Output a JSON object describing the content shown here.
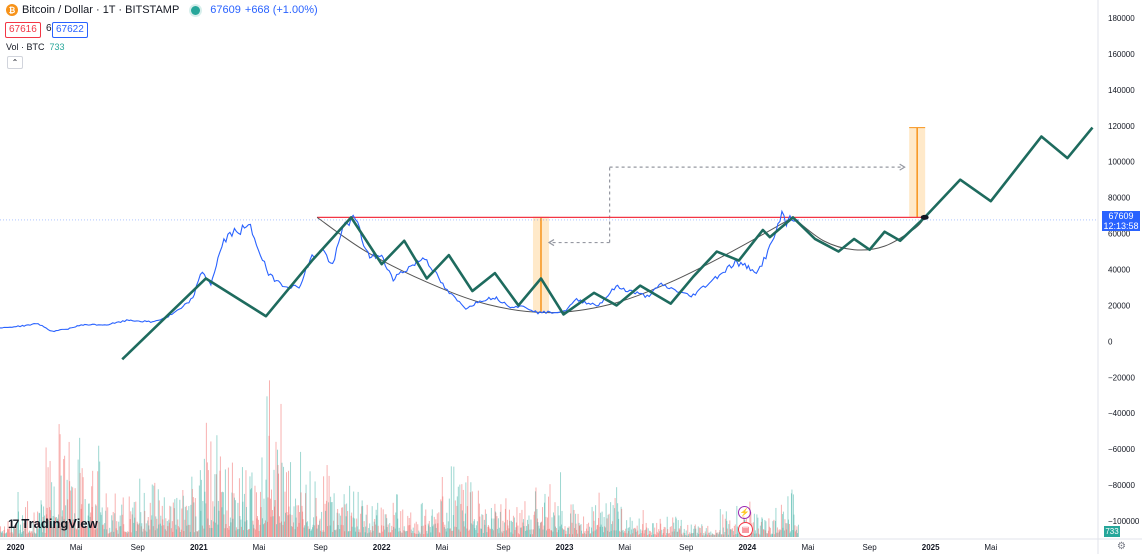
{
  "header": {
    "coin_symbol": "₿",
    "title": "Bitcoin / Dollar · 1T · BITSTAMP",
    "last": "67609",
    "change": "+668 (+1.00%)",
    "bid": "67616",
    "spread": "6",
    "ask": "67622"
  },
  "volume_label": {
    "name": "Vol · BTC",
    "value": "733"
  },
  "collapse_icon": "chevron-up-icon",
  "collapse_glyph": "⌃",
  "logo": {
    "mark": "17",
    "text": "TradingView"
  },
  "price_tag": {
    "price": "67609",
    "time": "12:13:58"
  },
  "volume_tag": "733",
  "colors": {
    "price": "#2962ff",
    "pattern": "#1e6b5e",
    "curve": "#555555",
    "resistance": "#f23645",
    "target": "#f7931a",
    "volume_up": "#26a69a",
    "volume_down": "#ef5350"
  },
  "chart_data": {
    "type": "line",
    "ylim": [
      -110000,
      190000
    ],
    "xlim": [
      "2019-12-01",
      "2025-12-01"
    ],
    "yticks": [
      180000,
      160000,
      140000,
      120000,
      100000,
      80000,
      60000,
      40000,
      20000,
      0,
      -20000,
      -40000,
      -60000,
      -80000,
      -100000
    ],
    "ytick_labels": [
      "180000",
      "160000",
      "140000",
      "120000",
      "100000",
      "80000",
      "60000",
      "40000",
      "20000",
      "0",
      "−20000",
      "−40000",
      "−60000",
      "−80000",
      "−100000"
    ],
    "xticks": [
      {
        "date": "2020-01-01",
        "label": "2020",
        "bold": true
      },
      {
        "date": "2020-05-01",
        "label": "Mai"
      },
      {
        "date": "2020-09-01",
        "label": "Sep"
      },
      {
        "date": "2021-01-01",
        "label": "2021",
        "bold": true
      },
      {
        "date": "2021-05-01",
        "label": "Mai"
      },
      {
        "date": "2021-09-01",
        "label": "Sep"
      },
      {
        "date": "2022-01-01",
        "label": "2022",
        "bold": true
      },
      {
        "date": "2022-05-01",
        "label": "Mai"
      },
      {
        "date": "2022-09-01",
        "label": "Sep"
      },
      {
        "date": "2023-01-01",
        "label": "2023",
        "bold": true
      },
      {
        "date": "2023-05-01",
        "label": "Mai"
      },
      {
        "date": "2023-09-01",
        "label": "Sep"
      },
      {
        "date": "2024-01-01",
        "label": "2024",
        "bold": true
      },
      {
        "date": "2024-05-01",
        "label": "Mai"
      },
      {
        "date": "2024-09-01",
        "label": "Sep"
      },
      {
        "date": "2025-01-01",
        "label": "2025",
        "bold": true
      },
      {
        "date": "2025-05-01",
        "label": "Mai"
      }
    ],
    "series": [
      {
        "key": "price",
        "values": [
          [
            "2019-12-01",
            7400
          ],
          [
            "2020-01-15",
            8600
          ],
          [
            "2020-02-15",
            9900
          ],
          [
            "2020-03-15",
            5500
          ],
          [
            "2020-04-15",
            7000
          ],
          [
            "2020-05-15",
            9300
          ],
          [
            "2020-07-01",
            9200
          ],
          [
            "2020-08-15",
            11800
          ],
          [
            "2020-10-01",
            10700
          ],
          [
            "2020-11-01",
            13800
          ],
          [
            "2020-12-01",
            19000
          ],
          [
            "2020-12-20",
            24000
          ],
          [
            "2021-01-08",
            39000
          ],
          [
            "2021-01-25",
            32000
          ],
          [
            "2021-02-20",
            56000
          ],
          [
            "2021-03-13",
            61000
          ],
          [
            "2021-04-14",
            63500
          ],
          [
            "2021-05-20",
            37000
          ],
          [
            "2021-06-22",
            31000
          ],
          [
            "2021-07-20",
            30000
          ],
          [
            "2021-08-15",
            47000
          ],
          [
            "2021-09-05",
            51000
          ],
          [
            "2021-09-25",
            42000
          ],
          [
            "2021-10-20",
            66000
          ],
          [
            "2021-11-10",
            68000
          ],
          [
            "2021-12-05",
            48000
          ],
          [
            "2022-01-01",
            47000
          ],
          [
            "2022-01-24",
            35000
          ],
          [
            "2022-03-28",
            47000
          ],
          [
            "2022-05-12",
            28000
          ],
          [
            "2022-06-18",
            18500
          ],
          [
            "2022-07-20",
            23000
          ],
          [
            "2022-08-15",
            24500
          ],
          [
            "2022-09-15",
            19500
          ],
          [
            "2022-10-15",
            19200
          ],
          [
            "2022-11-09",
            16000
          ],
          [
            "2022-12-31",
            16500
          ],
          [
            "2023-01-25",
            23000
          ],
          [
            "2023-03-10",
            20000
          ],
          [
            "2023-04-14",
            30500
          ],
          [
            "2023-06-15",
            25000
          ],
          [
            "2023-07-13",
            31500
          ],
          [
            "2023-09-11",
            25000
          ],
          [
            "2023-10-25",
            34500
          ],
          [
            "2023-12-08",
            44000
          ],
          [
            "2024-01-23",
            39000
          ],
          [
            "2024-02-15",
            52000
          ],
          [
            "2024-03-14",
            73000
          ],
          [
            "2024-03-19",
            63500
          ],
          [
            "2024-03-26",
            70000
          ],
          [
            "2024-04-12",
            67609
          ]
        ]
      },
      {
        "key": "pattern",
        "values": [
          [
            "2020-08-01",
            -10000
          ],
          [
            "2021-01-15",
            35000
          ],
          [
            "2021-05-15",
            14000
          ],
          [
            "2021-08-15",
            45000
          ],
          [
            "2021-11-01",
            69000
          ],
          [
            "2022-01-01",
            43000
          ],
          [
            "2022-02-15",
            56000
          ],
          [
            "2022-04-01",
            35000
          ],
          [
            "2022-05-15",
            48000
          ],
          [
            "2022-07-01",
            28000
          ],
          [
            "2022-08-15",
            38000
          ],
          [
            "2022-10-01",
            20000
          ],
          [
            "2022-11-15",
            35000
          ],
          [
            "2022-12-30",
            15000
          ],
          [
            "2023-03-01",
            27000
          ],
          [
            "2023-04-15",
            20000
          ],
          [
            "2023-06-01",
            31000
          ],
          [
            "2023-08-01",
            21000
          ],
          [
            "2023-09-15",
            36000
          ],
          [
            "2023-11-01",
            50000
          ],
          [
            "2023-12-15",
            45000
          ],
          [
            "2024-02-01",
            62000
          ],
          [
            "2024-02-15",
            58000
          ],
          [
            "2024-04-01",
            69000
          ],
          [
            "2024-05-15",
            57000
          ],
          [
            "2024-07-01",
            50000
          ],
          [
            "2024-08-01",
            57000
          ],
          [
            "2024-09-01",
            51000
          ],
          [
            "2024-10-01",
            61000
          ],
          [
            "2024-11-01",
            56000
          ],
          [
            "2024-12-20",
            69000
          ],
          [
            "2025-03-01",
            90000
          ],
          [
            "2025-05-01",
            78000
          ],
          [
            "2025-08-10",
            114000
          ],
          [
            "2025-10-01",
            102000
          ],
          [
            "2025-11-20",
            119000
          ]
        ]
      },
      {
        "key": "curve",
        "values": [
          [
            "2021-08-25",
            69000
          ],
          [
            "2021-12-01",
            50000
          ],
          [
            "2022-04-01",
            33000
          ],
          [
            "2022-08-01",
            20500
          ],
          [
            "2022-12-01",
            16000
          ],
          [
            "2023-04-01",
            20500
          ],
          [
            "2023-08-01",
            33000
          ],
          [
            "2023-12-01",
            50000
          ],
          [
            "2024-04-01",
            69000
          ]
        ]
      },
      {
        "key": "curve2",
        "values": [
          [
            "2024-04-01",
            69000
          ],
          [
            "2024-06-01",
            56000
          ],
          [
            "2024-08-01",
            51000
          ],
          [
            "2024-10-01",
            53000
          ],
          [
            "2024-12-01",
            63000
          ],
          [
            "2024-12-20",
            69000
          ]
        ]
      }
    ],
    "resistance": {
      "from": "2021-08-25",
      "to": "2024-12-20",
      "y": 69000
    },
    "targets": [
      {
        "date": "2022-11-15",
        "from": 16000,
        "to": 69000
      },
      {
        "date": "2024-12-05",
        "from": 69000,
        "to": 119000
      }
    ],
    "projection_arrows": [
      {
        "from": [
          "2023-04-01",
          55000
        ],
        "to": [
          "2022-12-01",
          55000
        ]
      },
      {
        "from": [
          "2023-04-01",
          55000
        ],
        "to": [
          "2023-04-01",
          97000
        ]
      },
      {
        "from": [
          "2023-04-01",
          97000
        ],
        "to": [
          "2024-11-10",
          97000
        ]
      }
    ],
    "volume": {
      "range": [
        0,
        85000
      ],
      "values": [
        [
          "2020-01",
          12000
        ],
        [
          "2020-03",
          32000
        ],
        [
          "2020-05",
          28000
        ],
        [
          "2020-07",
          12000
        ],
        [
          "2020-09",
          20000
        ],
        [
          "2020-11",
          18000
        ],
        [
          "2021-01",
          31000
        ],
        [
          "2021-03",
          22000
        ],
        [
          "2021-05",
          45000
        ],
        [
          "2021-07",
          22000
        ],
        [
          "2021-09",
          19000
        ],
        [
          "2021-11",
          14000
        ],
        [
          "2022-01",
          16000
        ],
        [
          "2022-03",
          11000
        ],
        [
          "2022-05",
          20000
        ],
        [
          "2022-07",
          14000
        ],
        [
          "2022-09",
          10000
        ],
        [
          "2022-11",
          18000
        ],
        [
          "2023-01",
          10000
        ],
        [
          "2023-03",
          14000
        ],
        [
          "2023-05",
          7000
        ],
        [
          "2023-07",
          6000
        ],
        [
          "2023-09",
          5000
        ],
        [
          "2023-11",
          8000
        ],
        [
          "2024-01",
          9000
        ],
        [
          "2024-03",
          14000
        ]
      ]
    }
  }
}
